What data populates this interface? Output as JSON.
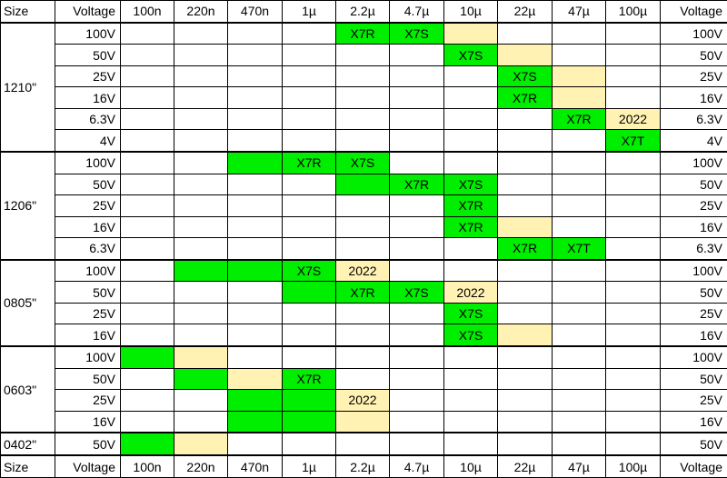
{
  "header": [
    "Size",
    "Voltage",
    "100n",
    "220n",
    "470n",
    "1µ",
    "2.2µ",
    "4.7µ",
    "10µ",
    "22µ",
    "47µ",
    "100µ",
    "Voltage"
  ],
  "groups": [
    {
      "size": "1210\"",
      "rows": [
        {
          "voltage": "100V",
          "cells": [
            null,
            null,
            null,
            null,
            {
              "color": "#00ee00",
              "text": "X7R"
            },
            {
              "color": "#00ee00",
              "text": "X7S"
            },
            {
              "color": "#fff2b3"
            },
            null,
            null,
            null
          ]
        },
        {
          "voltage": "50V",
          "cells": [
            null,
            null,
            null,
            null,
            null,
            null,
            {
              "color": "#00ee00",
              "text": "X7S"
            },
            {
              "color": "#fff2b3"
            },
            null,
            null
          ]
        },
        {
          "voltage": "25V",
          "cells": [
            null,
            null,
            null,
            null,
            null,
            null,
            null,
            {
              "color": "#00ee00",
              "text": "X7S"
            },
            {
              "color": "#fff2b3"
            },
            null
          ]
        },
        {
          "voltage": "16V",
          "cells": [
            null,
            null,
            null,
            null,
            null,
            null,
            null,
            {
              "color": "#00ee00",
              "text": "X7R"
            },
            {
              "color": "#fff2b3"
            },
            null
          ]
        },
        {
          "voltage": "6.3V",
          "cells": [
            null,
            null,
            null,
            null,
            null,
            null,
            null,
            null,
            {
              "color": "#00ee00",
              "text": "X7R"
            },
            {
              "color": "#fff2b3",
              "text": "2022"
            }
          ]
        },
        {
          "voltage": "4V",
          "cells": [
            null,
            null,
            null,
            null,
            null,
            null,
            null,
            null,
            null,
            {
              "color": "#00ee00",
              "text": "X7T"
            }
          ]
        }
      ]
    },
    {
      "size": "1206\"",
      "rows": [
        {
          "voltage": "100V",
          "cells": [
            null,
            null,
            {
              "color": "#00ee00"
            },
            {
              "color": "#00ee00",
              "text": "X7R"
            },
            {
              "color": "#00ee00",
              "text": "X7S"
            },
            null,
            null,
            null,
            null,
            null
          ]
        },
        {
          "voltage": "50V",
          "cells": [
            null,
            null,
            null,
            null,
            {
              "color": "#00ee00"
            },
            {
              "color": "#00ee00",
              "text": "X7R"
            },
            {
              "color": "#00ee00",
              "text": "X7S"
            },
            null,
            null,
            null
          ]
        },
        {
          "voltage": "25V",
          "cells": [
            null,
            null,
            null,
            null,
            null,
            null,
            {
              "color": "#00ee00",
              "text": "X7R"
            },
            null,
            null,
            null
          ]
        },
        {
          "voltage": "16V",
          "cells": [
            null,
            null,
            null,
            null,
            null,
            null,
            {
              "color": "#00ee00",
              "text": "X7R"
            },
            {
              "color": "#fff2b3"
            },
            null,
            null
          ]
        },
        {
          "voltage": "6.3V",
          "cells": [
            null,
            null,
            null,
            null,
            null,
            null,
            null,
            {
              "color": "#00ee00",
              "text": "X7R"
            },
            {
              "color": "#00ee00",
              "text": "X7T"
            },
            null
          ]
        }
      ]
    },
    {
      "size": "0805\"",
      "rows": [
        {
          "voltage": "100V",
          "cells": [
            null,
            {
              "color": "#00ee00"
            },
            {
              "color": "#00ee00"
            },
            {
              "color": "#00ee00",
              "text": "X7S"
            },
            {
              "color": "#fff2b3",
              "text": "2022"
            },
            null,
            null,
            null,
            null,
            null
          ]
        },
        {
          "voltage": "50V",
          "cells": [
            null,
            null,
            null,
            {
              "color": "#00ee00"
            },
            {
              "color": "#00ee00",
              "text": "X7R"
            },
            {
              "color": "#00ee00",
              "text": "X7S"
            },
            {
              "color": "#fff2b3",
              "text": "2022"
            },
            null,
            null,
            null
          ]
        },
        {
          "voltage": "25V",
          "cells": [
            null,
            null,
            null,
            null,
            null,
            null,
            {
              "color": "#00ee00",
              "text": "X7S"
            },
            null,
            null,
            null
          ]
        },
        {
          "voltage": "16V",
          "cells": [
            null,
            null,
            null,
            null,
            null,
            null,
            {
              "color": "#00ee00",
              "text": "X7S"
            },
            {
              "color": "#fff2b3"
            },
            null,
            null
          ]
        }
      ]
    },
    {
      "size": "0603\"",
      "rows": [
        {
          "voltage": "100V",
          "cells": [
            {
              "color": "#00ee00"
            },
            {
              "color": "#fff2b3"
            },
            null,
            null,
            null,
            null,
            null,
            null,
            null,
            null
          ]
        },
        {
          "voltage": "50V",
          "cells": [
            null,
            {
              "color": "#00ee00"
            },
            {
              "color": "#fff2b3"
            },
            {
              "color": "#00ee00",
              "text": "X7R"
            },
            null,
            null,
            null,
            null,
            null,
            null
          ]
        },
        {
          "voltage": "25V",
          "cells": [
            null,
            null,
            {
              "color": "#00ee00"
            },
            {
              "color": "#00ee00"
            },
            {
              "color": "#fff2b3",
              "text": "2022"
            },
            null,
            null,
            null,
            null,
            null
          ]
        },
        {
          "voltage": "16V",
          "cells": [
            null,
            null,
            {
              "color": "#00ee00"
            },
            {
              "color": "#00ee00"
            },
            {
              "color": "#fff2b3"
            },
            null,
            null,
            null,
            null,
            null
          ]
        }
      ]
    },
    {
      "size": "0402\"",
      "rows": [
        {
          "voltage": "50V",
          "cells": [
            {
              "color": "#00ee00"
            },
            {
              "color": "#fff2b3"
            },
            null,
            null,
            null,
            null,
            null,
            null,
            null,
            null
          ]
        }
      ]
    }
  ]
}
